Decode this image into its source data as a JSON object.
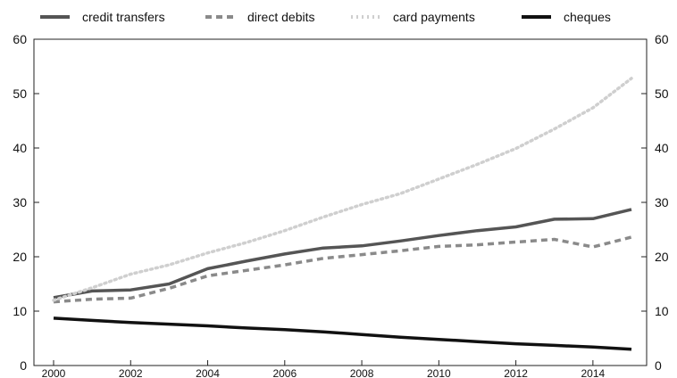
{
  "chart_data": {
    "type": "line",
    "x": [
      2000,
      2001,
      2002,
      2003,
      2004,
      2005,
      2006,
      2007,
      2008,
      2009,
      2010,
      2011,
      2012,
      2013,
      2014,
      2015
    ],
    "x_ticks": [
      "2000",
      "2002",
      "2004",
      "2006",
      "2008",
      "2010",
      "2012",
      "2014"
    ],
    "y_ticks": [
      "0",
      "10",
      "20",
      "30",
      "40",
      "50",
      "60"
    ],
    "ylim": [
      0,
      60
    ],
    "xlim": [
      2000,
      2015
    ],
    "grid": false,
    "legend_position": "top",
    "series": [
      {
        "name": "credit transfers",
        "style": "solid",
        "color": "#555555",
        "values": [
          12.5,
          13.7,
          13.9,
          15.0,
          17.8,
          19.2,
          20.5,
          21.6,
          22.0,
          22.9,
          23.9,
          24.8,
          25.5,
          26.9,
          27.0,
          28.7
        ]
      },
      {
        "name": "direct debits",
        "style": "dashed",
        "color": "#8a8a8a",
        "values": [
          11.7,
          12.2,
          12.4,
          14.2,
          16.5,
          17.5,
          18.5,
          19.7,
          20.4,
          21.1,
          21.9,
          22.2,
          22.7,
          23.2,
          21.8,
          23.6
        ]
      },
      {
        "name": "card payments",
        "style": "dotted",
        "color": "#cfcfcf",
        "values": [
          12.0,
          14.3,
          16.8,
          18.5,
          20.7,
          22.6,
          24.8,
          27.3,
          29.6,
          31.6,
          34.3,
          37.0,
          39.9,
          43.5,
          47.4,
          52.8
        ]
      },
      {
        "name": "cheques",
        "style": "solid",
        "color": "#111111",
        "values": [
          8.7,
          8.3,
          7.9,
          7.6,
          7.3,
          6.9,
          6.6,
          6.2,
          5.7,
          5.2,
          4.8,
          4.4,
          4.0,
          3.7,
          3.4,
          3.0
        ]
      }
    ]
  }
}
